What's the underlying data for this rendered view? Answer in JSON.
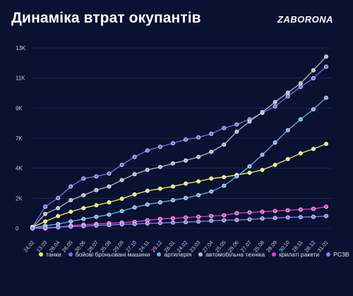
{
  "header": {
    "title": "Динаміка втрат окупантів",
    "brand": "ZABORONA"
  },
  "chart_data": {
    "type": "line",
    "x": [
      "24.02",
      "13.03",
      "28.04",
      "26.05",
      "30.06",
      "28.07",
      "25.08",
      "29.09",
      "27.10",
      "24.11",
      "29.12",
      "28.01",
      "24.02",
      "23.03",
      "27.04",
      "25.05",
      "29.06",
      "27.07",
      "25.08",
      "28.09",
      "30.10",
      "28.11",
      "28.12",
      "31.01"
    ],
    "y_ticks": [
      "0",
      "2K",
      "4K",
      "7K",
      "9K",
      "11K",
      "13K"
    ],
    "ylim": [
      0,
      12500
    ],
    "series": [
      {
        "name": "танки",
        "color": "#e9f25c",
        "values": [
          80,
          480,
          850,
          1150,
          1400,
          1600,
          1800,
          2050,
          2350,
          2600,
          2750,
          2900,
          3100,
          3250,
          3450,
          3550,
          3700,
          3850,
          4050,
          4400,
          4800,
          5200,
          5500,
          5850
        ]
      },
      {
        "name": "бойові броньовані машини",
        "color": "#7b6fe8",
        "values": [
          100,
          1500,
          2100,
          2900,
          3450,
          3600,
          3800,
          4400,
          4950,
          5400,
          5650,
          5900,
          6150,
          6300,
          6550,
          6950,
          7200,
          7550,
          8000,
          8450,
          9150,
          9800,
          10400,
          11200
        ]
      },
      {
        "name": "артилерія",
        "color": "#6ab0ea",
        "values": [
          30,
          180,
          300,
          480,
          650,
          800,
          950,
          1200,
          1450,
          1650,
          1800,
          1950,
          2100,
          2300,
          2550,
          2950,
          3600,
          4300,
          5100,
          5950,
          6800,
          7550,
          8250,
          9050
        ]
      },
      {
        "name": "автомобільна техніка",
        "color": "#b8b8c8",
        "values": [
          60,
          1000,
          1400,
          1950,
          2300,
          2650,
          2900,
          3350,
          3750,
          4050,
          4250,
          4500,
          4700,
          4950,
          5300,
          5800,
          6700,
          7400,
          8050,
          8750,
          9400,
          10050,
          10950,
          11900
        ]
      },
      {
        "name": "крилаті ракети",
        "color": "#e23fd0",
        "values": [
          0,
          0,
          80,
          180,
          250,
          300,
          350,
          400,
          450,
          550,
          650,
          700,
          750,
          800,
          850,
          900,
          1050,
          1100,
          1150,
          1200,
          1250,
          1300,
          1350,
          1500
        ]
      },
      {
        "name": "РСЗВ",
        "color": "#8a7ff0",
        "values": [
          10,
          50,
          80,
          120,
          150,
          200,
          230,
          280,
          300,
          340,
          370,
          400,
          430,
          470,
          520,
          560,
          580,
          620,
          680,
          720,
          760,
          780,
          800,
          850
        ]
      }
    ]
  }
}
